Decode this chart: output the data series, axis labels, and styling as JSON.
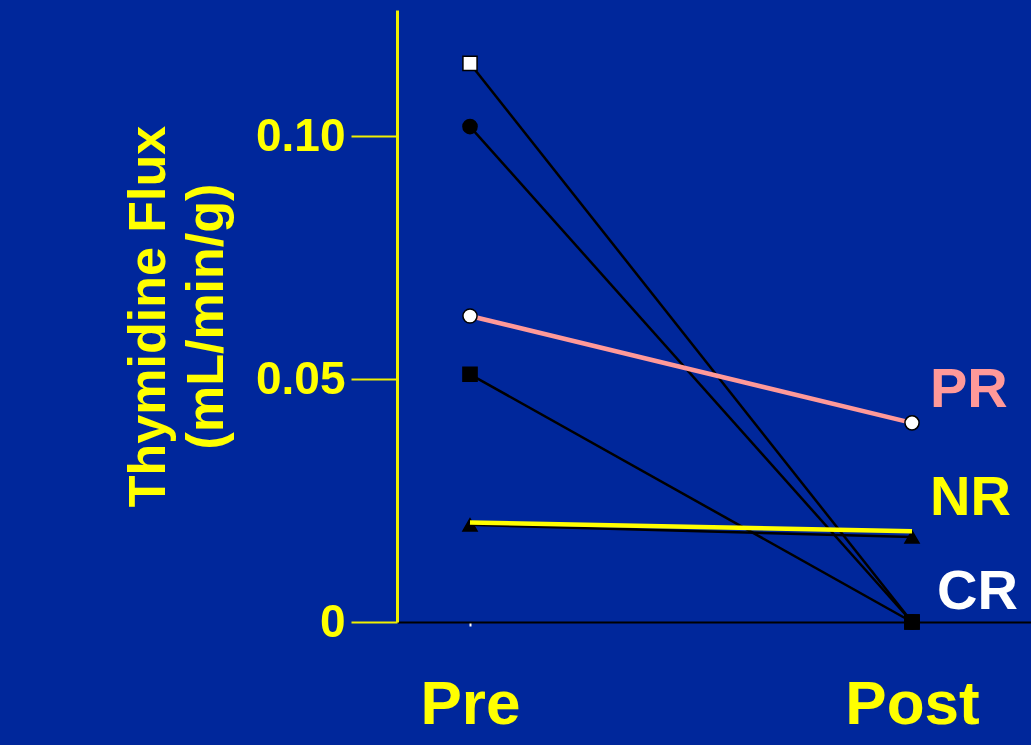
{
  "chart_data": {
    "type": "line",
    "ylabel": "Thymidine Flux\n(mL/min/g)",
    "categories": [
      "Pre",
      "Post"
    ],
    "ylim": [
      0,
      0.126
    ],
    "yticks": [
      0,
      0.05,
      {
        "value": 0.1,
        "label": "0.10"
      }
    ],
    "grid": false,
    "series": [
      {
        "color": "#000000",
        "marker": "square",
        "colors": [
          "#ffffff",
          "#000000"
        ],
        "values": [
          0.115,
          0
        ]
      },
      {
        "color": "#000000",
        "marker": "circle",
        "colors": [
          "#000000",
          "#000000"
        ],
        "values": [
          0.102,
          0
        ]
      },
      {
        "name": "PR",
        "color": "#ff9999",
        "marker": "circle",
        "colors": [
          "#ffffff",
          "#ffffff"
        ],
        "values": [
          0.063,
          0.041
        ]
      },
      {
        "color": "#000000",
        "marker": "square",
        "colors": [
          "#000000",
          "#000000"
        ],
        "values": [
          0.051,
          0
        ]
      },
      {
        "color": "#000000",
        "marker": "triangle",
        "colors": [
          "#000000",
          "#000000"
        ],
        "values": [
          0.02,
          0.0175
        ]
      },
      {
        "name": "NR",
        "color": "#ffff00",
        "marker": "none",
        "values": [
          0.0205,
          0.0187
        ]
      }
    ],
    "annotations": [
      "CR"
    ]
  }
}
